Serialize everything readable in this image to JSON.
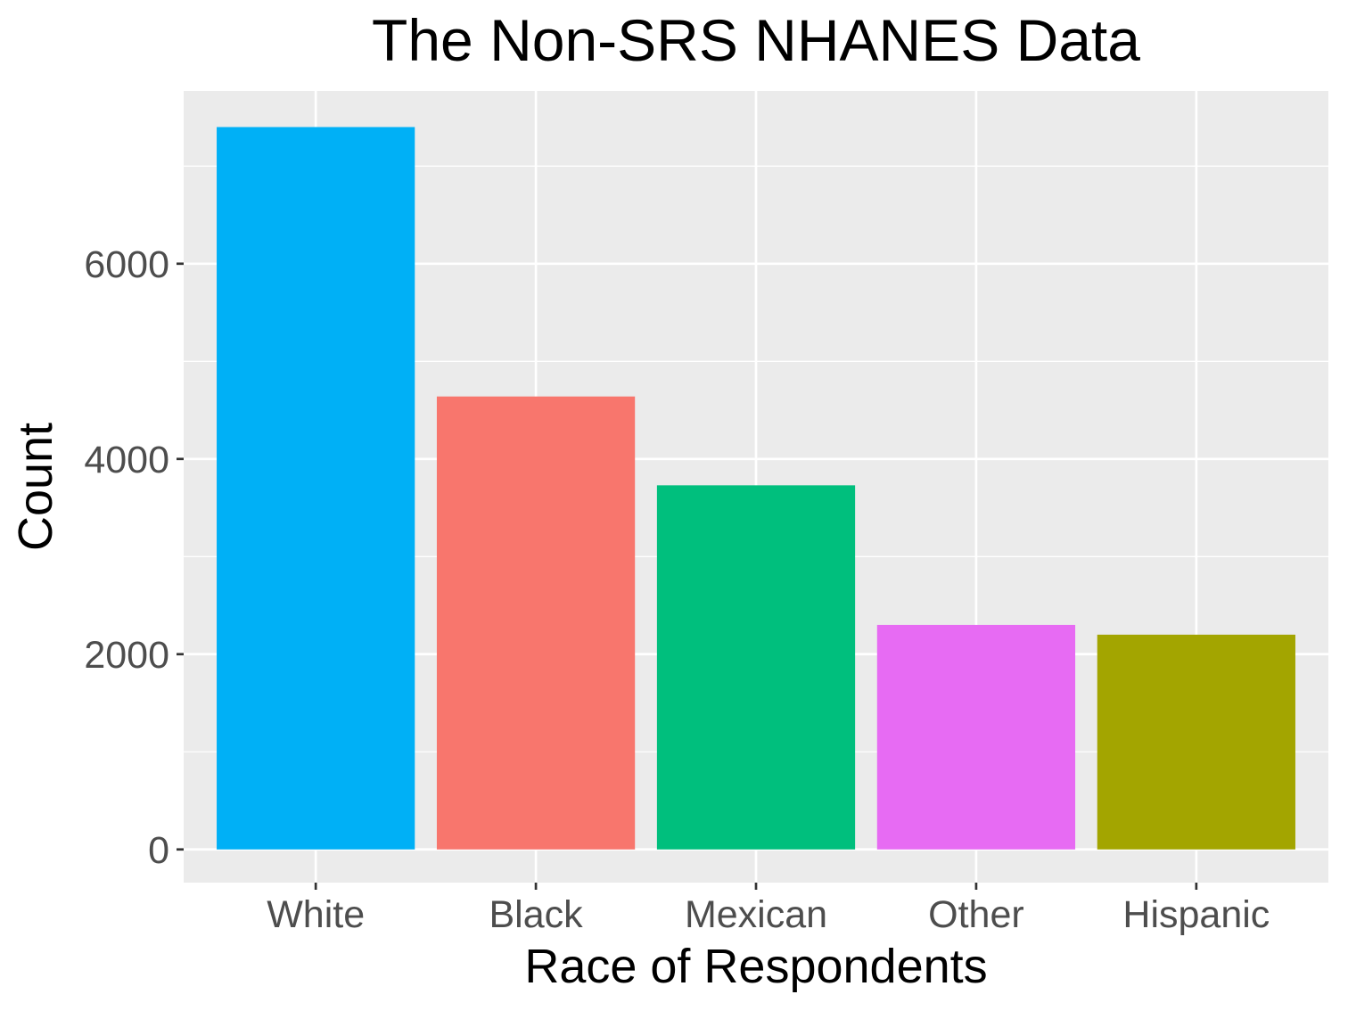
{
  "chart_data": {
    "type": "bar",
    "title": "The Non-SRS NHANES Data",
    "xlabel": "Race of Respondents",
    "ylabel": "Count",
    "categories": [
      "White",
      "Black",
      "Mexican",
      "Other",
      "Hispanic"
    ],
    "values": [
      7400,
      4640,
      3730,
      2300,
      2200
    ],
    "colors": [
      "#00B0F6",
      "#F8766D",
      "#00BF7D",
      "#E76BF3",
      "#A3A500"
    ],
    "yticks": [
      0,
      2000,
      4000,
      6000
    ],
    "ylim": [
      -340,
      7770
    ],
    "grid": true,
    "panel_background": "#EBEBEB",
    "grid_color": "#FFFFFF",
    "legend": "none"
  }
}
